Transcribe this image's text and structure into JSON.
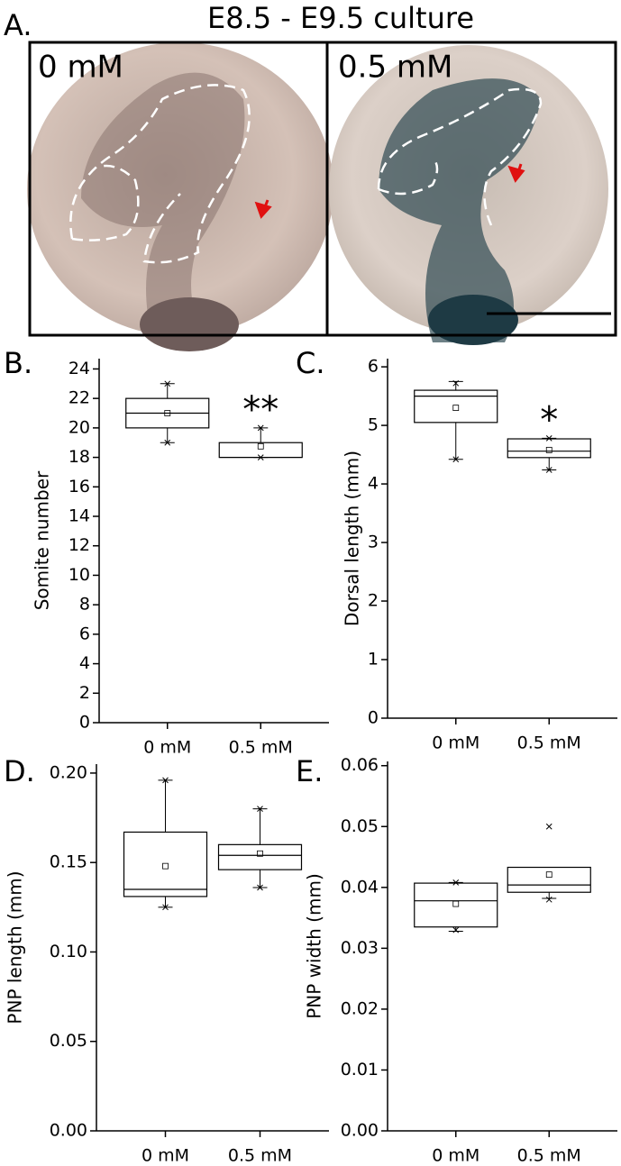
{
  "panel_a": {
    "label": "A.",
    "title": "E8.5 - E9.5 culture",
    "left_label": "0 mM",
    "right_label": "0.5 mM"
  },
  "chart_data": [
    {
      "type": "box",
      "panel_label": "B.",
      "ylabel": "Somite number",
      "categories": [
        "0 mM",
        "0.5 mM"
      ],
      "boxes": [
        {
          "q1": 20,
          "median": 21,
          "q3": 22,
          "mean": 21,
          "whisker_low": 19,
          "whisker_high": 23,
          "extremes": [
            19,
            23
          ]
        },
        {
          "q1": 18,
          "median": 18,
          "q3": 19,
          "mean": 18.75,
          "whisker_low": 18,
          "whisker_high": 20,
          "extremes": [
            18,
            20
          ],
          "significance": "**"
        }
      ],
      "ylim": [
        0,
        24.7
      ],
      "yticks": [
        0,
        2,
        4,
        6,
        8,
        10,
        12,
        14,
        16,
        18,
        20,
        22,
        24
      ]
    },
    {
      "type": "box",
      "panel_label": "C.",
      "ylabel": "Dorsal length (mm)",
      "categories": [
        "0 mM",
        "0.5 mM"
      ],
      "boxes": [
        {
          "q1": 5.05,
          "median": 5.5,
          "q3": 5.6,
          "mean": 5.3,
          "whisker_low": 4.42,
          "whisker_high": 5.75,
          "extremes": [
            4.42,
            5.72
          ]
        },
        {
          "q1": 4.45,
          "median": 4.56,
          "q3": 4.77,
          "mean": 4.58,
          "whisker_low": 4.24,
          "whisker_high": 4.78,
          "extremes": [
            4.24,
            4.78
          ],
          "significance": "*"
        }
      ],
      "ylim": [
        0,
        6.14
      ],
      "yticks": [
        0,
        1,
        2,
        3,
        4,
        5,
        6
      ]
    },
    {
      "type": "box",
      "panel_label": "D.",
      "ylabel": "PNP length (mm)",
      "categories": [
        "0 mM",
        "0.5 mM"
      ],
      "boxes": [
        {
          "q1": 0.131,
          "median": 0.135,
          "q3": 0.167,
          "mean": 0.148,
          "whisker_low": 0.125,
          "whisker_high": 0.196,
          "extremes": [
            0.125,
            0.196
          ]
        },
        {
          "q1": 0.146,
          "median": 0.154,
          "q3": 0.16,
          "mean": 0.155,
          "whisker_low": 0.136,
          "whisker_high": 0.18,
          "extremes": [
            0.136,
            0.18
          ]
        }
      ],
      "ylim": [
        0,
        0.205
      ],
      "yticks": [
        {
          "value": 0,
          "label": "0.00"
        },
        0.05,
        {
          "value": 0.1,
          "label": "0.10"
        },
        0.15,
        {
          "value": 0.2,
          "label": "0.20"
        }
      ]
    },
    {
      "type": "box",
      "panel_label": "E.",
      "ylabel": "PNP width (mm)",
      "categories": [
        "0 mM",
        "0.5 mM"
      ],
      "boxes": [
        {
          "q1": 0.0335,
          "median": 0.0378,
          "q3": 0.0407,
          "mean": 0.0373,
          "whisker_low": 0.0328,
          "whisker_high": 0.0408,
          "extremes": [
            0.033,
            0.0408
          ]
        },
        {
          "q1": 0.0392,
          "median": 0.0404,
          "q3": 0.0433,
          "mean": 0.0421,
          "whisker_low": 0.0382,
          "whisker_high": 0.0433,
          "extremes": [
            0.038,
            0.05
          ]
        }
      ],
      "ylim": [
        0,
        0.0607
      ],
      "yticks": [
        {
          "value": 0,
          "label": "0.00"
        },
        0.01,
        0.02,
        0.03,
        0.04,
        0.05,
        0.06
      ]
    }
  ]
}
